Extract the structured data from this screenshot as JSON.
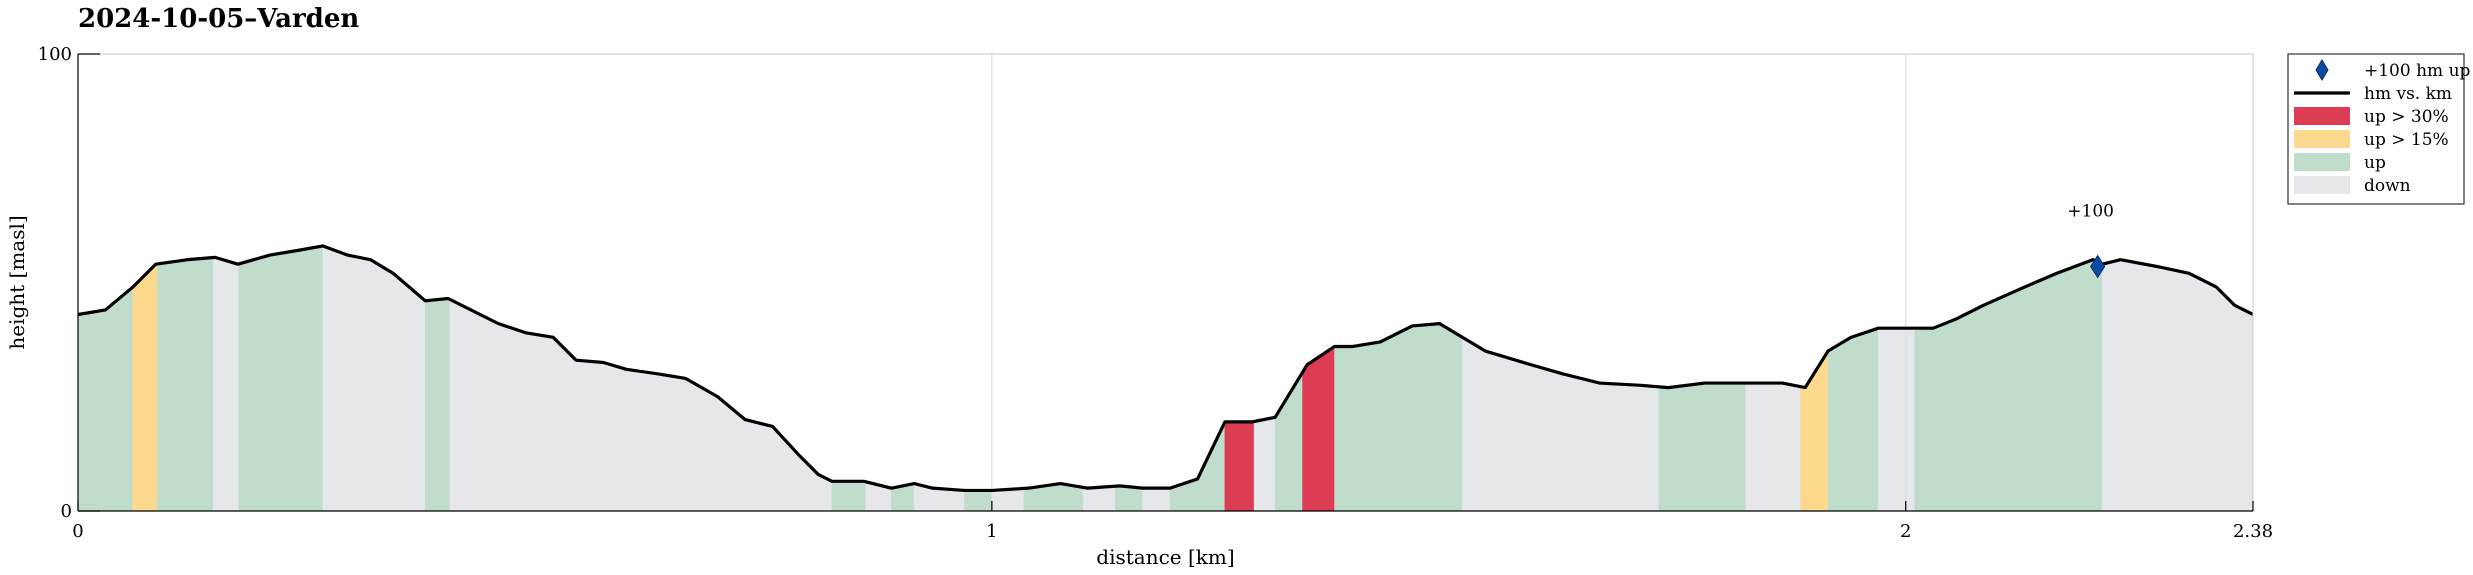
{
  "chart_data": {
    "type": "area",
    "title": "2024-10-05–Varden",
    "xlabel": "distance [km]",
    "ylabel": "height [masl]",
    "xlim": [
      0,
      2.38
    ],
    "ylim": [
      0,
      100
    ],
    "xticks": [
      {
        "value": 0,
        "label": "0"
      },
      {
        "value": 1,
        "label": "1"
      },
      {
        "value": 2,
        "label": "2"
      },
      {
        "value": 2.38,
        "label": "2.38"
      }
    ],
    "yticks": [
      {
        "value": 0,
        "label": "0"
      },
      {
        "value": 100,
        "label": "100"
      }
    ],
    "grid": {
      "vertical": [
        1,
        2
      ],
      "horizontal": []
    },
    "legend_position": "outside-right",
    "series": [
      {
        "name": "hm vs. km",
        "x": [
          0,
          0.03,
          0.06,
          0.085,
          0.12,
          0.15,
          0.175,
          0.21,
          0.24,
          0.268,
          0.295,
          0.32,
          0.345,
          0.38,
          0.405,
          0.43,
          0.46,
          0.49,
          0.52,
          0.545,
          0.575,
          0.6,
          0.635,
          0.665,
          0.7,
          0.73,
          0.76,
          0.79,
          0.81,
          0.825,
          0.86,
          0.89,
          0.915,
          0.935,
          0.97,
          1.0,
          1.04,
          1.075,
          1.105,
          1.14,
          1.165,
          1.195,
          1.225,
          1.255,
          1.285,
          1.31,
          1.345,
          1.375,
          1.395,
          1.425,
          1.46,
          1.49,
          1.515,
          1.54,
          1.59,
          1.625,
          1.665,
          1.71,
          1.74,
          1.78,
          1.81,
          1.865,
          1.89,
          1.915,
          1.94,
          1.97,
          1.995,
          2.03,
          2.055,
          2.085,
          2.13,
          2.165,
          2.205,
          2.215,
          2.235,
          2.275,
          2.31,
          2.34,
          2.36,
          2.38
        ],
        "y": [
          43,
          44,
          49,
          54,
          55,
          55.5,
          54,
          56,
          57,
          58,
          56,
          55,
          52,
          46,
          46.5,
          44,
          41,
          39,
          38,
          33,
          32.5,
          31,
          30,
          29,
          25,
          20,
          18.5,
          12,
          8,
          6.5,
          6.5,
          5,
          6,
          5,
          4.5,
          4.5,
          5,
          6,
          5,
          5.5,
          5,
          5,
          7,
          19.5,
          19.5,
          20.5,
          32,
          36,
          36,
          37,
          40.5,
          41,
          38,
          35,
          32,
          30,
          28,
          27.5,
          27,
          28,
          28,
          28,
          27,
          35,
          38,
          40,
          40,
          40,
          42,
          45,
          49,
          52,
          55,
          54,
          55,
          53.5,
          52,
          49,
          45,
          43
        ]
      }
    ],
    "slope_bands": [
      {
        "x0": 0,
        "x1": 0.06,
        "class": "up"
      },
      {
        "x0": 0.06,
        "x1": 0.087,
        "class": "up > 15%"
      },
      {
        "x0": 0.087,
        "x1": 0.148,
        "class": "up"
      },
      {
        "x0": 0.148,
        "x1": 0.176,
        "class": "down"
      },
      {
        "x0": 0.176,
        "x1": 0.268,
        "class": "up"
      },
      {
        "x0": 0.268,
        "x1": 0.38,
        "class": "down"
      },
      {
        "x0": 0.38,
        "x1": 0.407,
        "class": "up"
      },
      {
        "x0": 0.407,
        "x1": 0.825,
        "class": "down"
      },
      {
        "x0": 0.825,
        "x1": 0.862,
        "class": "up"
      },
      {
        "x0": 0.862,
        "x1": 0.89,
        "class": "down"
      },
      {
        "x0": 0.89,
        "x1": 0.915,
        "class": "up"
      },
      {
        "x0": 0.915,
        "x1": 0.97,
        "class": "down"
      },
      {
        "x0": 0.97,
        "x1": 1.0,
        "class": "up"
      },
      {
        "x0": 1.0,
        "x1": 1.035,
        "class": "down"
      },
      {
        "x0": 1.035,
        "x1": 1.1,
        "class": "up"
      },
      {
        "x0": 1.1,
        "x1": 1.135,
        "class": "down"
      },
      {
        "x0": 1.135,
        "x1": 1.165,
        "class": "up"
      },
      {
        "x0": 1.165,
        "x1": 1.195,
        "class": "down"
      },
      {
        "x0": 1.195,
        "x1": 1.255,
        "class": "up"
      },
      {
        "x0": 1.255,
        "x1": 1.287,
        "class": "up > 30%"
      },
      {
        "x0": 1.287,
        "x1": 1.31,
        "class": "down"
      },
      {
        "x0": 1.31,
        "x1": 1.34,
        "class": "up"
      },
      {
        "x0": 1.34,
        "x1": 1.375,
        "class": "up > 30%"
      },
      {
        "x0": 1.375,
        "x1": 1.515,
        "class": "up"
      },
      {
        "x0": 1.515,
        "x1": 1.73,
        "class": "down"
      },
      {
        "x0": 1.73,
        "x1": 1.825,
        "class": "up"
      },
      {
        "x0": 1.825,
        "x1": 1.885,
        "class": "down"
      },
      {
        "x0": 1.885,
        "x1": 1.915,
        "class": "up > 15%"
      },
      {
        "x0": 1.915,
        "x1": 1.97,
        "class": "up"
      },
      {
        "x0": 1.97,
        "x1": 2.01,
        "class": "down"
      },
      {
        "x0": 2.01,
        "x1": 2.215,
        "class": "up"
      },
      {
        "x0": 2.215,
        "x1": 2.38,
        "class": "down"
      }
    ],
    "markers": [
      {
        "x": 2.21,
        "y": 53.5,
        "label": "+100",
        "series": "+100 hm up"
      }
    ],
    "legend": [
      {
        "label": "+100 hm up",
        "symbol": "diamond",
        "color": "#0b4aa2"
      },
      {
        "label": "hm vs. km",
        "symbol": "line",
        "color": "#000000"
      },
      {
        "label": "up > 30%",
        "symbol": "patch",
        "color": "#dc3d52"
      },
      {
        "label": "up > 15%",
        "symbol": "patch",
        "color": "#fcd98c"
      },
      {
        "label": "up",
        "symbol": "patch",
        "color": "#c0ddcc"
      },
      {
        "label": "down",
        "symbol": "patch",
        "color": "#e6e7ea"
      }
    ],
    "colors": {
      "up > 30%": "#dc3d52",
      "up > 15%": "#fcd98c",
      "up": "#c0ddcc",
      "down": "#e6e7ea",
      "line": "#000000",
      "marker": "#0b4aa2",
      "grid": "#dedede",
      "axes": "#000000"
    }
  }
}
